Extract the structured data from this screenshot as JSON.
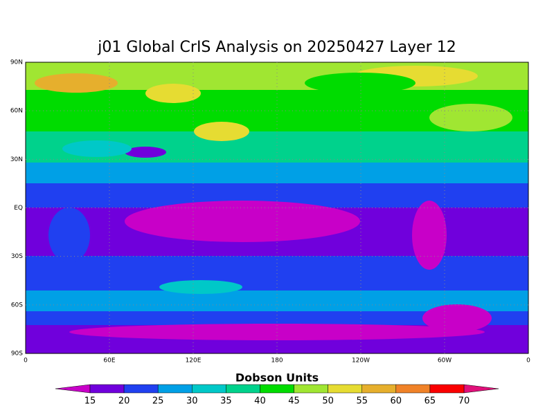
{
  "title": "j01 Global CrIS Analysis on 20250427 Layer 12",
  "lat_labels": [
    "90N",
    "60N",
    "30N",
    "EQ",
    "30S",
    "60S",
    "90S"
  ],
  "lon_labels": [
    "0",
    "60E",
    "120E",
    "180",
    "120W",
    "60W",
    "0"
  ],
  "colorbar": {
    "label": "Dobson Units",
    "levels": [
      15,
      20,
      25,
      30,
      35,
      40,
      45,
      50,
      55,
      60,
      65,
      70
    ],
    "colors": [
      "#c800c8",
      "#7000dc",
      "#2040f0",
      "#00a0e6",
      "#00c8c8",
      "#00d28c",
      "#00dc00",
      "#a0e632",
      "#e6dc32",
      "#e6af2d",
      "#f08228",
      "#fa0000",
      "#e0107a"
    ]
  }
}
